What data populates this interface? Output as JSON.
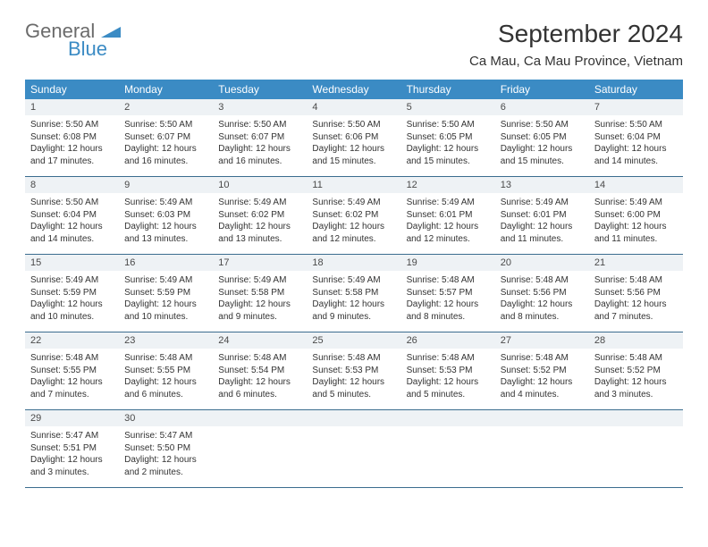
{
  "brand": {
    "main": "General",
    "sub": "Blue"
  },
  "title": "September 2024",
  "location": "Ca Mau, Ca Mau Province, Vietnam",
  "colors": {
    "header_bg": "#3b8bc4",
    "header_text": "#ffffff",
    "daynum_bg": "#eef2f5",
    "week_border": "#3b6d8f",
    "text": "#333333",
    "logo_gray": "#6b6b6b",
    "logo_blue": "#3b8bc4"
  },
  "day_names": [
    "Sunday",
    "Monday",
    "Tuesday",
    "Wednesday",
    "Thursday",
    "Friday",
    "Saturday"
  ],
  "weeks": [
    {
      "nums": [
        "1",
        "2",
        "3",
        "4",
        "5",
        "6",
        "7"
      ],
      "cells": [
        {
          "sunrise": "5:50 AM",
          "sunset": "6:08 PM",
          "dl1": "Daylight: 12 hours",
          "dl2": "and 17 minutes."
        },
        {
          "sunrise": "5:50 AM",
          "sunset": "6:07 PM",
          "dl1": "Daylight: 12 hours",
          "dl2": "and 16 minutes."
        },
        {
          "sunrise": "5:50 AM",
          "sunset": "6:07 PM",
          "dl1": "Daylight: 12 hours",
          "dl2": "and 16 minutes."
        },
        {
          "sunrise": "5:50 AM",
          "sunset": "6:06 PM",
          "dl1": "Daylight: 12 hours",
          "dl2": "and 15 minutes."
        },
        {
          "sunrise": "5:50 AM",
          "sunset": "6:05 PM",
          "dl1": "Daylight: 12 hours",
          "dl2": "and 15 minutes."
        },
        {
          "sunrise": "5:50 AM",
          "sunset": "6:05 PM",
          "dl1": "Daylight: 12 hours",
          "dl2": "and 15 minutes."
        },
        {
          "sunrise": "5:50 AM",
          "sunset": "6:04 PM",
          "dl1": "Daylight: 12 hours",
          "dl2": "and 14 minutes."
        }
      ]
    },
    {
      "nums": [
        "8",
        "9",
        "10",
        "11",
        "12",
        "13",
        "14"
      ],
      "cells": [
        {
          "sunrise": "5:50 AM",
          "sunset": "6:04 PM",
          "dl1": "Daylight: 12 hours",
          "dl2": "and 14 minutes."
        },
        {
          "sunrise": "5:49 AM",
          "sunset": "6:03 PM",
          "dl1": "Daylight: 12 hours",
          "dl2": "and 13 minutes."
        },
        {
          "sunrise": "5:49 AM",
          "sunset": "6:02 PM",
          "dl1": "Daylight: 12 hours",
          "dl2": "and 13 minutes."
        },
        {
          "sunrise": "5:49 AM",
          "sunset": "6:02 PM",
          "dl1": "Daylight: 12 hours",
          "dl2": "and 12 minutes."
        },
        {
          "sunrise": "5:49 AM",
          "sunset": "6:01 PM",
          "dl1": "Daylight: 12 hours",
          "dl2": "and 12 minutes."
        },
        {
          "sunrise": "5:49 AM",
          "sunset": "6:01 PM",
          "dl1": "Daylight: 12 hours",
          "dl2": "and 11 minutes."
        },
        {
          "sunrise": "5:49 AM",
          "sunset": "6:00 PM",
          "dl1": "Daylight: 12 hours",
          "dl2": "and 11 minutes."
        }
      ]
    },
    {
      "nums": [
        "15",
        "16",
        "17",
        "18",
        "19",
        "20",
        "21"
      ],
      "cells": [
        {
          "sunrise": "5:49 AM",
          "sunset": "5:59 PM",
          "dl1": "Daylight: 12 hours",
          "dl2": "and 10 minutes."
        },
        {
          "sunrise": "5:49 AM",
          "sunset": "5:59 PM",
          "dl1": "Daylight: 12 hours",
          "dl2": "and 10 minutes."
        },
        {
          "sunrise": "5:49 AM",
          "sunset": "5:58 PM",
          "dl1": "Daylight: 12 hours",
          "dl2": "and 9 minutes."
        },
        {
          "sunrise": "5:49 AM",
          "sunset": "5:58 PM",
          "dl1": "Daylight: 12 hours",
          "dl2": "and 9 minutes."
        },
        {
          "sunrise": "5:48 AM",
          "sunset": "5:57 PM",
          "dl1": "Daylight: 12 hours",
          "dl2": "and 8 minutes."
        },
        {
          "sunrise": "5:48 AM",
          "sunset": "5:56 PM",
          "dl1": "Daylight: 12 hours",
          "dl2": "and 8 minutes."
        },
        {
          "sunrise": "5:48 AM",
          "sunset": "5:56 PM",
          "dl1": "Daylight: 12 hours",
          "dl2": "and 7 minutes."
        }
      ]
    },
    {
      "nums": [
        "22",
        "23",
        "24",
        "25",
        "26",
        "27",
        "28"
      ],
      "cells": [
        {
          "sunrise": "5:48 AM",
          "sunset": "5:55 PM",
          "dl1": "Daylight: 12 hours",
          "dl2": "and 7 minutes."
        },
        {
          "sunrise": "5:48 AM",
          "sunset": "5:55 PM",
          "dl1": "Daylight: 12 hours",
          "dl2": "and 6 minutes."
        },
        {
          "sunrise": "5:48 AM",
          "sunset": "5:54 PM",
          "dl1": "Daylight: 12 hours",
          "dl2": "and 6 minutes."
        },
        {
          "sunrise": "5:48 AM",
          "sunset": "5:53 PM",
          "dl1": "Daylight: 12 hours",
          "dl2": "and 5 minutes."
        },
        {
          "sunrise": "5:48 AM",
          "sunset": "5:53 PM",
          "dl1": "Daylight: 12 hours",
          "dl2": "and 5 minutes."
        },
        {
          "sunrise": "5:48 AM",
          "sunset": "5:52 PM",
          "dl1": "Daylight: 12 hours",
          "dl2": "and 4 minutes."
        },
        {
          "sunrise": "5:48 AM",
          "sunset": "5:52 PM",
          "dl1": "Daylight: 12 hours",
          "dl2": "and 3 minutes."
        }
      ]
    },
    {
      "nums": [
        "29",
        "30",
        "",
        "",
        "",
        "",
        ""
      ],
      "cells": [
        {
          "sunrise": "5:47 AM",
          "sunset": "5:51 PM",
          "dl1": "Daylight: 12 hours",
          "dl2": "and 3 minutes."
        },
        {
          "sunrise": "5:47 AM",
          "sunset": "5:50 PM",
          "dl1": "Daylight: 12 hours",
          "dl2": "and 2 minutes."
        },
        null,
        null,
        null,
        null,
        null
      ]
    }
  ],
  "labels": {
    "sunrise": "Sunrise:",
    "sunset": "Sunset:"
  }
}
